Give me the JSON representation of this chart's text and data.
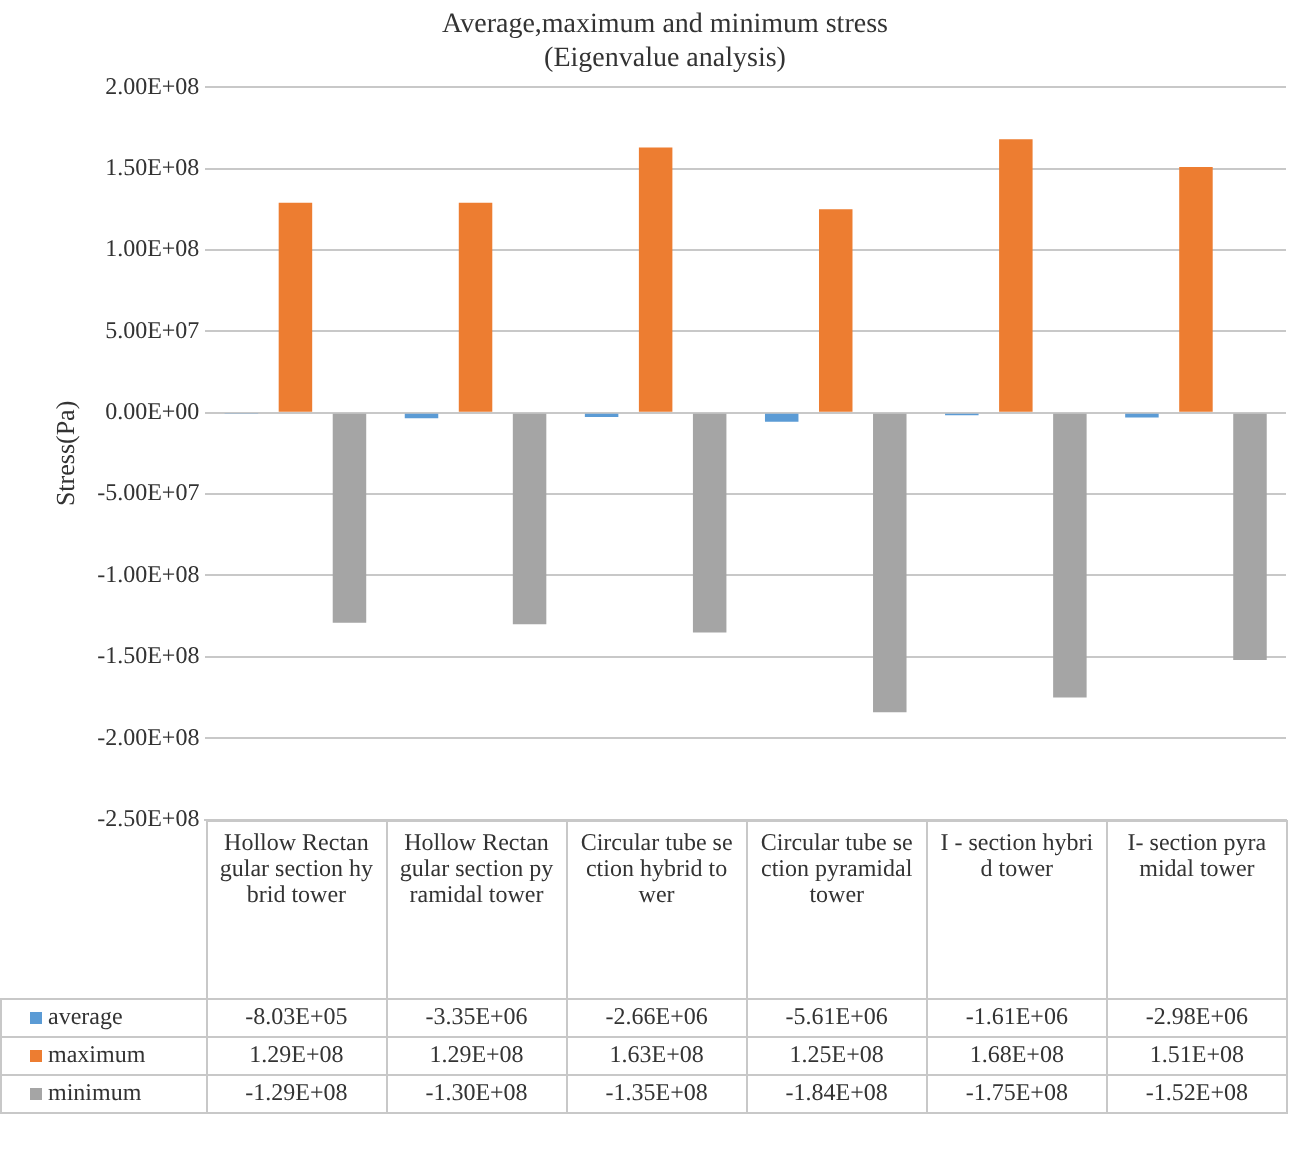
{
  "chart_data": {
    "type": "bar",
    "title": [
      "Average,maximum and minimum stress",
      "(Eigenvalue analysis)"
    ],
    "ylabel": "Stress(Pa)",
    "categories": [
      "Hollow Rectangular section hybrid tower",
      "Hollow Rectangular section pyramidal tower",
      "Circular tube section hybrid tower",
      "Circular tube section pyramidal tower",
      "I - section hybrid tower",
      "I- section pyramidal tower"
    ],
    "series": [
      {
        "name": "average",
        "color": "#5b9bd5",
        "values": [
          -803000,
          -3350000,
          -2660000,
          -5610000,
          -1610000,
          -2980000
        ],
        "value_labels": [
          "-8.03E+05",
          "-3.35E+06",
          "-2.66E+06",
          "-5.61E+06",
          "-1.61E+06",
          "-2.98E+06"
        ]
      },
      {
        "name": "maximum",
        "color": "#ed7d31",
        "values": [
          129000000,
          129000000,
          163000000,
          125000000,
          168000000,
          151000000
        ],
        "value_labels": [
          "1.29E+08",
          "1.29E+08",
          "1.63E+08",
          "1.25E+08",
          "1.68E+08",
          "1.51E+08"
        ]
      },
      {
        "name": "minimum",
        "color": "#a5a5a5",
        "values": [
          -129000000,
          -130000000,
          -135000000,
          -184000000,
          -175000000,
          -152000000
        ],
        "value_labels": [
          "-1.29E+08",
          "-1.30E+08",
          "-1.35E+08",
          "-1.84E+08",
          "-1.75E+08",
          "-1.52E+08"
        ]
      }
    ],
    "ylim": [
      -250000000,
      200000000
    ],
    "yticks": [
      {
        "value": -250000000,
        "label": "-2.50E+08"
      },
      {
        "value": -200000000,
        "label": "-2.00E+08"
      },
      {
        "value": -150000000,
        "label": "-1.50E+08"
      },
      {
        "value": -100000000,
        "label": "-1.00E+08"
      },
      {
        "value": -50000000,
        "label": "-5.00E+07"
      },
      {
        "value": 0,
        "label": "0.00E+00"
      },
      {
        "value": 50000000,
        "label": "5.00E+07"
      },
      {
        "value": 100000000,
        "label": "1.00E+08"
      },
      {
        "value": 150000000,
        "label": "1.50E+08"
      },
      {
        "value": 200000000,
        "label": "2.00E+08"
      }
    ],
    "grid": "y",
    "legend": "bottom"
  }
}
